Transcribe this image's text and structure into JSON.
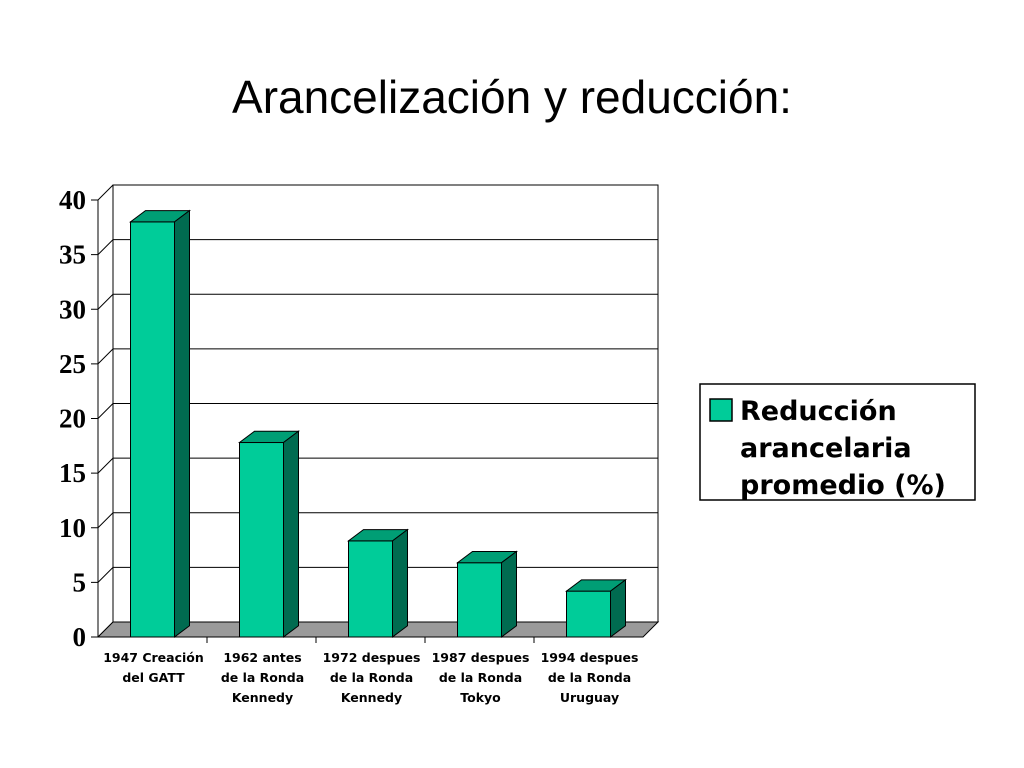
{
  "slide": {
    "title": "Arancelización y reducción:"
  },
  "colors": {
    "bar_front": "#00CC99",
    "bar_top": "#009E75",
    "bar_side": "#006B50",
    "floor": "#9A9A9A",
    "grid": "#000000"
  },
  "chart_data": {
    "type": "bar",
    "title": "",
    "xlabel": "",
    "ylabel": "",
    "ylim": [
      0,
      40
    ],
    "yticks": [
      0,
      5,
      10,
      15,
      20,
      25,
      30,
      35,
      40
    ],
    "grid": true,
    "legend_position": "right",
    "categories": [
      [
        "1947 Creación",
        "del GATT"
      ],
      [
        "1962 antes",
        "de la Ronda",
        "Kennedy"
      ],
      [
        "1972 despues",
        "de la Ronda",
        "Kennedy"
      ],
      [
        "1987 despues",
        "de la Ronda",
        "Tokyo"
      ],
      [
        "1994 despues",
        "de la Ronda",
        "Uruguay"
      ]
    ],
    "series": [
      {
        "name": [
          "Reducción",
          "arancelaria",
          "promedio (%)"
        ],
        "values": [
          38,
          17.8,
          8.8,
          6.8,
          4.2
        ]
      }
    ]
  }
}
